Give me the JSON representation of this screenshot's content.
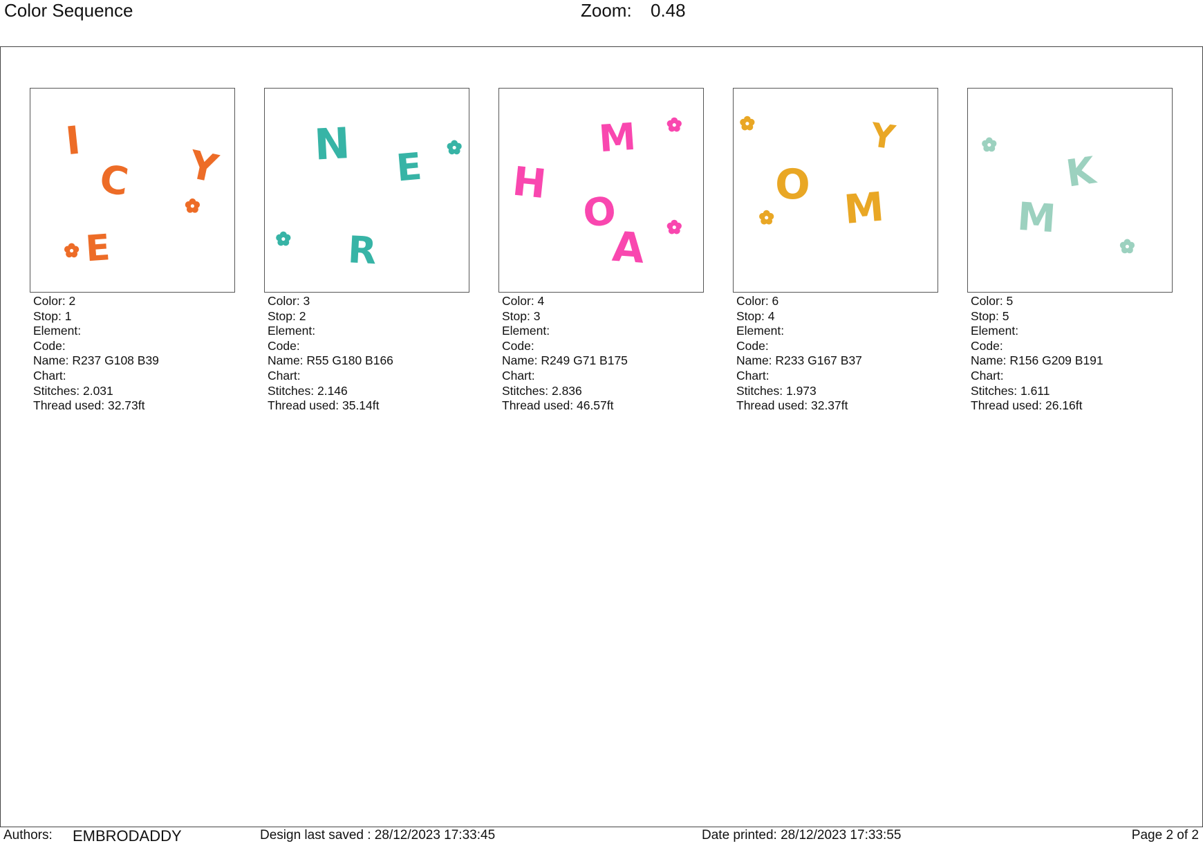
{
  "header": {
    "title": "Color Sequence",
    "zoom_label": "Zoom:",
    "zoom_value": "0.48"
  },
  "labels": {
    "color": "Color: ",
    "stop": "Stop: ",
    "element": "Element:",
    "code": "Code:",
    "name": "Name: ",
    "chart": "Chart:",
    "stitches": "Stitches: ",
    "thread": "Thread used: "
  },
  "cards": [
    {
      "color": "2",
      "stop": "1",
      "name": "R237 G108 B39",
      "stitches": "2.031",
      "thread_used": "32.73ft",
      "thread_hex": "#ED6C27",
      "letters": [
        "I",
        "C",
        "Y",
        "E"
      ]
    },
    {
      "color": "3",
      "stop": "2",
      "name": "R55 G180 B166",
      "stitches": "2.146",
      "thread_used": "35.14ft",
      "thread_hex": "#37B4A6",
      "letters": [
        "N",
        "E",
        "R"
      ]
    },
    {
      "color": "4",
      "stop": "3",
      "name": "R249 G71 B175",
      "stitches": "2.836",
      "thread_used": "46.57ft",
      "thread_hex": "#F947AF",
      "letters": [
        "M",
        "H",
        "O",
        "A"
      ]
    },
    {
      "color": "6",
      "stop": "4",
      "name": "R233 G167 B37",
      "stitches": "1.973",
      "thread_used": "32.37ft",
      "thread_hex": "#E9A725",
      "letters": [
        "Y",
        "O",
        "M"
      ]
    },
    {
      "color": "5",
      "stop": "5",
      "name": "R156 G209 B191",
      "stitches": "1.611",
      "thread_used": "26.16ft",
      "thread_hex": "#9CD1BF",
      "letters": [
        "K",
        "M"
      ]
    }
  ],
  "footer": {
    "authors_label": "Authors:",
    "authors_value": "EMBRODADDY",
    "design_saved": "Design last saved : 28/12/2023 17:33:45",
    "date_printed": "Date printed: 28/12/2023 17:33:55",
    "page": "Page 2 of 2"
  }
}
